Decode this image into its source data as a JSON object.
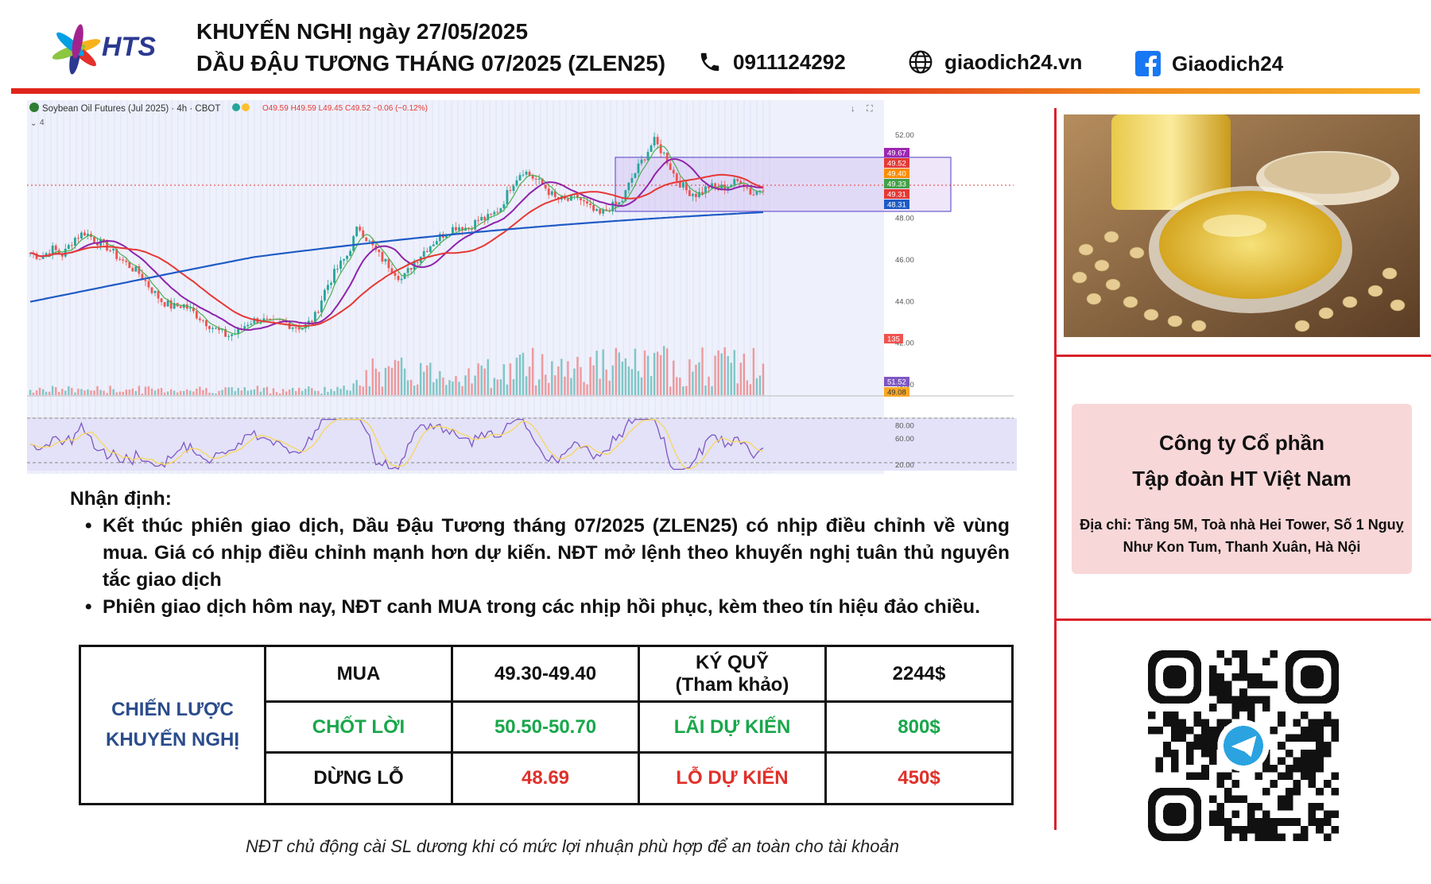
{
  "header": {
    "brand": "HTS",
    "title_line1": "KHUYẾN NGHỊ ngày 27/05/2025",
    "title_line2": "DẦU ĐẬU TƯƠNG THÁNG 07/2025 (ZLEN25)",
    "phone": "0911124292",
    "website": "giaodich24.vn",
    "facebook": "Giaodich24",
    "icons": [
      "phone-icon",
      "globe-icon",
      "facebook-icon"
    ]
  },
  "chart_data": {
    "type": "candlestick",
    "title": "Soybean Oil Futures (Jul 2025) · 4h · CBOT",
    "ohlc_text": "O49.59 H49.59 L49.45 C49.52 −0.06 (−0.12%)",
    "indicator_count": "4",
    "y_ticks": [
      "52.00",
      "48.00",
      "46.00",
      "44.00",
      "42.00",
      "40.00"
    ],
    "ylim": [
      39.5,
      53
    ],
    "price_labels": [
      {
        "text": "49.67",
        "value": 49.67,
        "color": "#9c27b0"
      },
      {
        "text": "49.52",
        "value": 49.52,
        "color": "#e53935"
      },
      {
        "text": "49.40",
        "value": 49.4,
        "color": "#fb8c00"
      },
      {
        "text": "49.33",
        "value": 49.33,
        "color": "#43a047"
      },
      {
        "text": "49.31",
        "value": 49.31,
        "color": "#e53935"
      },
      {
        "text": "48.31",
        "value": 48.31,
        "color": "#1e5bc6"
      }
    ],
    "volume_label": "135",
    "osc_ticks": [
      "80.00",
      "60.00",
      "20.00"
    ],
    "osc_labels": [
      {
        "text": "51.52",
        "value": 51.52,
        "color": "#7e57c2"
      },
      {
        "text": "49.08",
        "value": 49.08,
        "color": "#f9a825"
      }
    ],
    "range_box": {
      "low": 48.3,
      "high": 50.9
    },
    "close_series": [
      46.3,
      46.1,
      46.5,
      46.2,
      47.0,
      47.3,
      46.9,
      46.6,
      46.1,
      45.7,
      45.3,
      44.6,
      44.0,
      43.7,
      43.8,
      43.4,
      43.0,
      42.6,
      42.3,
      42.5,
      43.0,
      43.1,
      42.9,
      43.0,
      42.8,
      42.7,
      43.2,
      44.6,
      45.5,
      46.2,
      47.6,
      46.8,
      46.1,
      45.6,
      45.0,
      45.8,
      46.4,
      46.9,
      47.3,
      47.6,
      47.5,
      47.9,
      48.0,
      48.5,
      49.6,
      50.3,
      49.9,
      49.5,
      48.9,
      48.8,
      49.0,
      48.5,
      48.1,
      48.5,
      48.7,
      49.9,
      50.8,
      51.7,
      51.0,
      49.9,
      49.3,
      49.1,
      49.5,
      49.4,
      49.6,
      49.8,
      49.1,
      49.5
    ]
  },
  "analysis": {
    "heading": "Nhận định:",
    "points": [
      "Kết thúc phiên giao dịch, Dầu Đậu Tương tháng 07/2025 (ZLEN25) có nhịp điều chỉnh về vùng mua. Giá có nhịp điều chỉnh mạnh hơn dự kiến. NĐT mở lệnh theo khuyến nghị tuân thủ nguyên tắc giao dịch",
      "Phiên giao dịch hôm nay, NĐT canh MUA trong các nhịp hồi phục, kèm theo tín hiệu đảo chiều."
    ]
  },
  "table": {
    "strategy_line1": "CHIẾN LƯỢC",
    "strategy_line2": "KHUYẾN NGHỊ",
    "buy_label": "MUA",
    "buy_value": "49.30-49.40",
    "margin_label_1": "KÝ QUỸ",
    "margin_label_2": "(Tham khảo)",
    "margin_value": "2244$",
    "tp_label": "CHỐT LỜI",
    "tp_value": "50.50-50.70",
    "profit_label": "LÃI DỰ KIẾN",
    "profit_value": "800$",
    "sl_label": "DỪNG LỖ",
    "sl_value": "48.69",
    "loss_label": "LỖ DỰ KIẾN",
    "loss_value": "450$"
  },
  "company": {
    "name_line1": "Công ty Cổ phần",
    "name_line2": "Tập đoàn HT Việt Nam",
    "address": "Địa chỉ: Tầng 5M, Toà nhà Hei Tower, Số 1 Nguỵ Như Kon Tum, Thanh Xuân, Hà Nội"
  },
  "footnote": "NĐT chủ động cài SL dương khi có mức lợi nhuận phù hợp để an toàn cho tài khoản",
  "colors": {
    "brand": "#2b3990",
    "accent_red": "#e0241b",
    "profit_green": "#19a74b",
    "loss_red": "#e0302a",
    "strategy_blue": "#2b4c8c"
  }
}
